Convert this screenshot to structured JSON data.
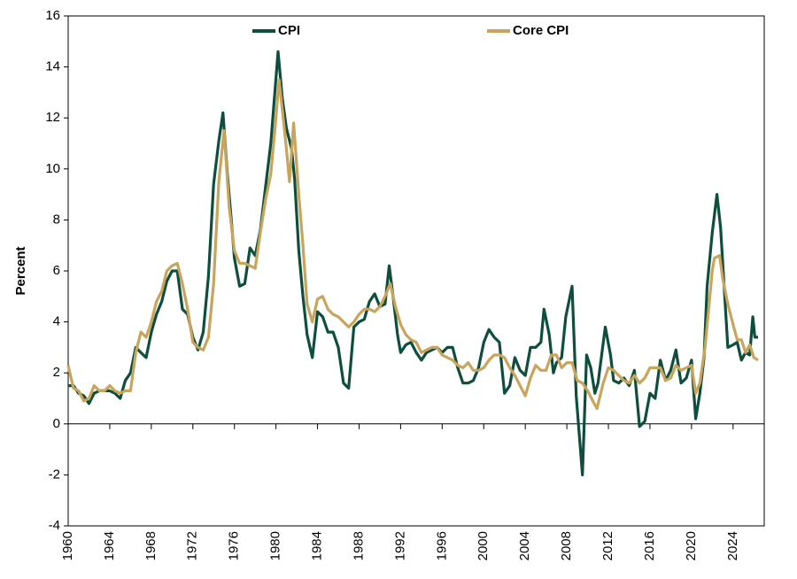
{
  "chart_data": {
    "type": "line",
    "y_label": "Percent",
    "xlim": [
      1960,
      2027
    ],
    "xticks": [
      1960,
      1964,
      1968,
      1972,
      1976,
      1980,
      1984,
      1988,
      1992,
      1996,
      2000,
      2004,
      2008,
      2012,
      2016,
      2020,
      2024
    ],
    "ylim": [
      -4,
      16
    ],
    "yticks": [
      16,
      14,
      12,
      10,
      8,
      6,
      4,
      2,
      0,
      -2,
      -4
    ],
    "legend": "top",
    "series": [
      {
        "name": "CPI",
        "color": "#0d4f3c",
        "x": [
          1960,
          1960.5,
          1961,
          1961.5,
          1962,
          1962.5,
          1963,
          1963.5,
          1964,
          1964.5,
          1965,
          1965.5,
          1966,
          1966.5,
          1967,
          1967.5,
          1968,
          1968.5,
          1969,
          1969.5,
          1970,
          1970.5,
          1971,
          1971.5,
          1972,
          1972.5,
          1973,
          1973.5,
          1974,
          1974.5,
          1974.9,
          1975.3,
          1975.7,
          1976,
          1976.5,
          1977,
          1977.5,
          1978,
          1978.5,
          1979,
          1979.5,
          1980.2,
          1980.6,
          1981,
          1981.5,
          1981.8,
          1982.2,
          1982.6,
          1983,
          1983.5,
          1984,
          1984.5,
          1985,
          1985.5,
          1986,
          1986.5,
          1987,
          1987.5,
          1988,
          1988.5,
          1989,
          1989.5,
          1990,
          1990.5,
          1990.9,
          1991.3,
          1991.7,
          1992,
          1992.5,
          1993,
          1993.5,
          1994,
          1994.5,
          1995,
          1995.5,
          1996,
          1996.5,
          1997,
          1997.5,
          1998,
          1998.5,
          1999,
          1999.5,
          2000,
          2000.5,
          2001,
          2001.5,
          2002,
          2002.5,
          2003,
          2003.5,
          2004,
          2004.5,
          2005,
          2005.5,
          2005.8,
          2006.3,
          2006.7,
          2007,
          2007.5,
          2007.9,
          2008.5,
          2008.9,
          2009.5,
          2009.9,
          2010.3,
          2010.7,
          2011,
          2011.7,
          2012.2,
          2012.5,
          2013,
          2013.5,
          2014,
          2014.5,
          2015,
          2015.5,
          2016,
          2016.5,
          2017,
          2017.5,
          2018,
          2018.5,
          2019,
          2019.5,
          2020,
          2020.4,
          2020.8,
          2021.2,
          2021.5,
          2022,
          2022.45,
          2022.8,
          2023.2,
          2023.5,
          2024,
          2024.4,
          2024.8,
          2025.2,
          2025.6,
          2025.9,
          2026.1,
          2026.4
        ],
        "values": [
          1.5,
          1.5,
          1.2,
          1.1,
          0.8,
          1.2,
          1.3,
          1.3,
          1.3,
          1.2,
          1.0,
          1.7,
          2.0,
          3.0,
          2.8,
          2.6,
          3.6,
          4.3,
          4.8,
          5.6,
          6.0,
          6.0,
          4.5,
          4.3,
          3.4,
          2.9,
          3.6,
          5.8,
          9.4,
          11.1,
          12.2,
          9.9,
          8.0,
          6.5,
          5.4,
          5.5,
          6.9,
          6.6,
          7.6,
          9.3,
          11.0,
          14.6,
          12.8,
          11.6,
          10.8,
          9.6,
          6.8,
          5.0,
          3.5,
          2.6,
          4.4,
          4.2,
          3.6,
          3.6,
          3.0,
          1.6,
          1.4,
          3.8,
          4.0,
          4.1,
          4.8,
          5.1,
          4.6,
          4.7,
          6.2,
          4.9,
          3.5,
          2.8,
          3.1,
          3.2,
          2.8,
          2.5,
          2.8,
          2.9,
          3.0,
          2.8,
          3.0,
          3.0,
          2.2,
          1.6,
          1.6,
          1.7,
          2.2,
          3.2,
          3.7,
          3.4,
          3.2,
          1.2,
          1.5,
          2.6,
          2.1,
          1.9,
          3.0,
          3.0,
          3.2,
          4.5,
          3.5,
          2.0,
          2.4,
          2.6,
          4.2,
          5.4,
          1.1,
          -2.0,
          2.7,
          2.2,
          1.2,
          1.6,
          3.8,
          2.7,
          1.7,
          1.6,
          1.8,
          1.5,
          2.1,
          -0.1,
          0.1,
          1.2,
          1.0,
          2.5,
          1.7,
          2.1,
          2.9,
          1.6,
          1.8,
          2.5,
          0.2,
          1.2,
          2.6,
          5.4,
          7.5,
          9.0,
          7.7,
          5.0,
          3.0,
          3.1,
          3.2,
          2.5,
          2.8,
          2.7,
          4.2,
          3.4,
          3.4
        ]
      },
      {
        "name": "Core CPI",
        "color": "#c9a45c",
        "x": [
          1960,
          1960.5,
          1961,
          1961.5,
          1962,
          1962.5,
          1963,
          1963.5,
          1964,
          1964.5,
          1965,
          1965.5,
          1966,
          1966.5,
          1967,
          1967.5,
          1968,
          1968.5,
          1969,
          1969.5,
          1970,
          1970.5,
          1971,
          1971.5,
          1972,
          1972.5,
          1973,
          1973.5,
          1974,
          1974.5,
          1975,
          1975.5,
          1976,
          1976.5,
          1977,
          1977.5,
          1978,
          1978.5,
          1979,
          1979.5,
          1980,
          1980.3,
          1980.7,
          1981,
          1981.3,
          1981.7,
          1982.2,
          1982.6,
          1983,
          1983.5,
          1984,
          1984.5,
          1985,
          1985.5,
          1986,
          1986.5,
          1987,
          1987.5,
          1988,
          1988.5,
          1989,
          1989.5,
          1990,
          1990.5,
          1991,
          1991.5,
          1992,
          1992.5,
          1993,
          1993.5,
          1994,
          1994.5,
          1995,
          1995.5,
          1996,
          1996.5,
          1997,
          1997.5,
          1998,
          1998.5,
          1999,
          1999.5,
          2000,
          2000.5,
          2001,
          2001.5,
          2002,
          2002.5,
          2003,
          2003.5,
          2004,
          2004.5,
          2005,
          2005.5,
          2006,
          2006.5,
          2007,
          2007.5,
          2008,
          2008.5,
          2009,
          2009.5,
          2010,
          2010.5,
          2010.9,
          2011.5,
          2012,
          2012.5,
          2013,
          2013.5,
          2014,
          2014.5,
          2015,
          2015.5,
          2016,
          2016.5,
          2017,
          2017.5,
          2018,
          2018.5,
          2019,
          2019.5,
          2020,
          2020.4,
          2020.8,
          2021.3,
          2021.6,
          2022,
          2022.2,
          2022.7,
          2023,
          2023.5,
          2024,
          2024.4,
          2024.8,
          2025.2,
          2025.6,
          2026,
          2026.4
        ],
        "values": [
          2.3,
          1.4,
          1.3,
          0.9,
          1.0,
          1.5,
          1.3,
          1.3,
          1.5,
          1.3,
          1.2,
          1.3,
          1.3,
          2.8,
          3.6,
          3.4,
          4.0,
          4.8,
          5.2,
          6.0,
          6.2,
          6.3,
          5.5,
          4.5,
          3.2,
          3.0,
          2.9,
          3.4,
          5.5,
          9.5,
          11.5,
          8.5,
          6.8,
          6.3,
          6.3,
          6.2,
          6.1,
          7.5,
          8.8,
          9.8,
          12.0,
          13.5,
          12.0,
          10.8,
          9.5,
          11.8,
          9.0,
          7.0,
          4.7,
          4.0,
          4.9,
          5.0,
          4.5,
          4.3,
          4.2,
          4.0,
          3.8,
          4.0,
          4.3,
          4.5,
          4.5,
          4.4,
          4.6,
          5.0,
          5.5,
          4.6,
          3.9,
          3.5,
          3.3,
          3.2,
          2.8,
          2.9,
          3.0,
          3.0,
          2.7,
          2.6,
          2.5,
          2.3,
          2.2,
          2.4,
          2.1,
          2.1,
          2.2,
          2.5,
          2.7,
          2.7,
          2.6,
          2.2,
          1.9,
          1.5,
          1.1,
          1.8,
          2.3,
          2.1,
          2.1,
          2.7,
          2.7,
          2.2,
          2.4,
          2.4,
          1.7,
          1.6,
          1.3,
          0.9,
          0.6,
          1.6,
          2.2,
          2.1,
          1.9,
          1.7,
          1.6,
          1.9,
          1.6,
          1.8,
          2.2,
          2.2,
          2.2,
          1.7,
          1.8,
          2.3,
          2.1,
          2.2,
          2.3,
          1.2,
          1.6,
          3.0,
          4.3,
          6.0,
          6.5,
          6.6,
          5.7,
          4.7,
          3.9,
          3.3,
          3.3,
          2.8,
          3.1,
          2.6,
          2.5
        ]
      }
    ]
  }
}
